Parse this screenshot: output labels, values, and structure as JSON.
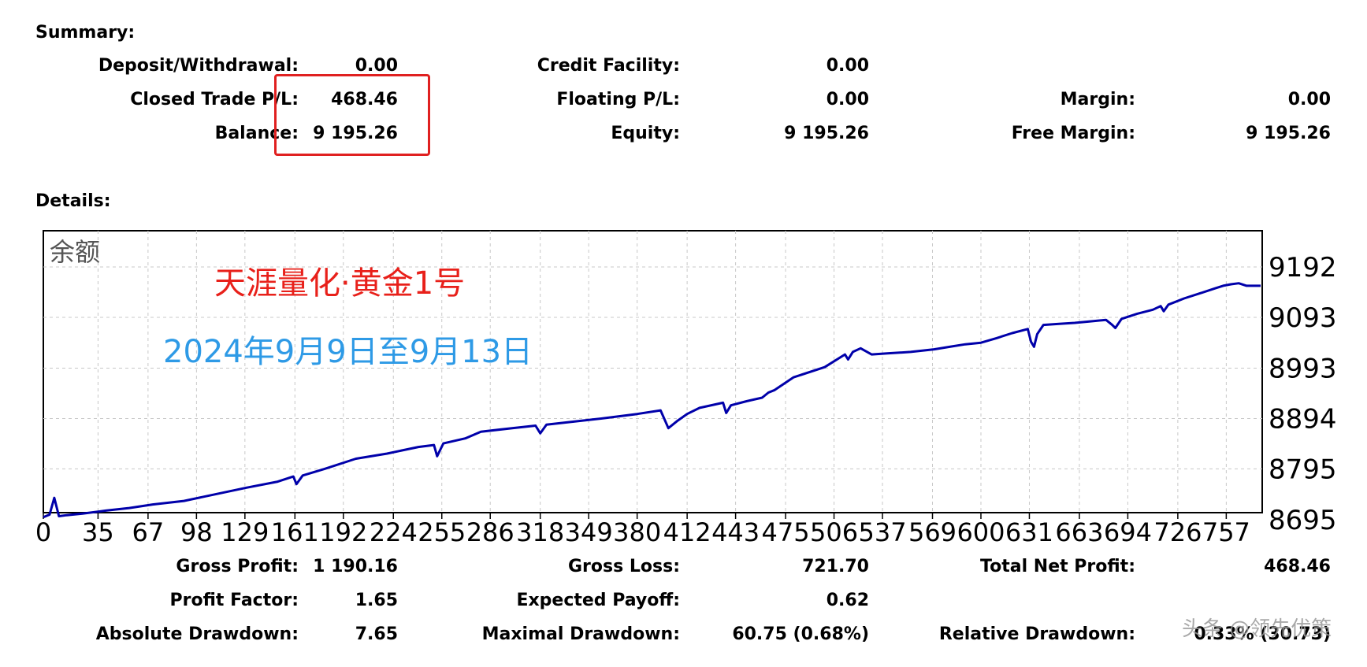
{
  "summary": {
    "title": "Summary:",
    "deposit_label": "Deposit/Withdrawal:",
    "deposit_value": "0.00",
    "credit_label": "Credit Facility:",
    "credit_value": "0.00",
    "closed_pl_label": "Closed Trade P/L:",
    "closed_pl_value": "468.46",
    "floating_pl_label": "Floating P/L:",
    "floating_pl_value": "0.00",
    "margin_label": "Margin:",
    "margin_value": "0.00",
    "balance_label": "Balance:",
    "balance_value": "9 195.26",
    "equity_label": "Equity:",
    "equity_value": "9 195.26",
    "free_margin_label": "Free Margin:",
    "free_margin_value": "9 195.26"
  },
  "details": {
    "title": "Details:",
    "gross_profit_label": "Gross Profit:",
    "gross_profit_value": "1 190.16",
    "gross_loss_label": "Gross Loss:",
    "gross_loss_value": "721.70",
    "total_net_profit_label": "Total Net Profit:",
    "total_net_profit_value": "468.46",
    "profit_factor_label": "Profit Factor:",
    "profit_factor_value": "1.65",
    "expected_payoff_label": "Expected Payoff:",
    "expected_payoff_value": "0.62",
    "absolute_drawdown_label": "Absolute Drawdown:",
    "absolute_drawdown_value": "7.65",
    "maximal_drawdown_label": "Maximal Drawdown:",
    "maximal_drawdown_value": "60.75 (0.68%)",
    "relative_drawdown_label": "Relative Drawdown:",
    "relative_drawdown_value": "0.33% (30.73)"
  },
  "annotations": {
    "strategy_name": "天涯量化·黄金1号",
    "date_range": "2024年9月9日至9月13日",
    "strategy_color": "#e8201a",
    "date_color": "#2e9ae6"
  },
  "watermark": "头条 @领先优策",
  "colors": {
    "line": "#0000aa",
    "grid": "#c8c8c8",
    "highlight": "#e02020"
  },
  "chart_data": {
    "type": "line",
    "label": "余额",
    "y_ticks": [
      "9192",
      "9093",
      "8993",
      "8894",
      "8795",
      "8695"
    ],
    "ylim": [
      8695,
      9192
    ],
    "x_ticks": [
      "0",
      "35",
      "67",
      "98",
      "129",
      "161",
      "192",
      "224",
      "255",
      "286",
      "318",
      "349",
      "380",
      "412",
      "443",
      "475",
      "506",
      "537",
      "569",
      "600",
      "631",
      "663",
      "694",
      "726",
      "757"
    ],
    "xlim": [
      0,
      779
    ],
    "grid": true,
    "series": [
      {
        "x": [
          0,
          4,
          7,
          10,
          15,
          25,
          40,
          55,
          70,
          90,
          110,
          130,
          150,
          160,
          162,
          166,
          180,
          200,
          220,
          240,
          250,
          252,
          256,
          270,
          280,
          300,
          315,
          318,
          322,
          340,
          360,
          380,
          395,
          400,
          406,
          412,
          420,
          435,
          437,
          440,
          450,
          460,
          464,
          468,
          480,
          500,
          513,
          515,
          518,
          523,
          530,
          540,
          555,
          570,
          580,
          590,
          600,
          610,
          620,
          630,
          632,
          634,
          636,
          640,
          650,
          660,
          670,
          680,
          684,
          686,
          690,
          700,
          710,
          715,
          717,
          720,
          730,
          740,
          750,
          755,
          760,
          765,
          770,
          779
        ],
        "y": [
          8700,
          8705,
          8738,
          8702,
          8704,
          8707,
          8713,
          8718,
          8725,
          8732,
          8745,
          8758,
          8770,
          8780,
          8765,
          8782,
          8795,
          8815,
          8825,
          8838,
          8842,
          8820,
          8845,
          8855,
          8868,
          8875,
          8880,
          8865,
          8882,
          8888,
          8895,
          8903,
          8910,
          8875,
          8890,
          8903,
          8915,
          8925,
          8905,
          8920,
          8928,
          8935,
          8945,
          8950,
          8975,
          8995,
          9020,
          9010,
          9025,
          9032,
          9020,
          9022,
          9025,
          9030,
          9035,
          9040,
          9043,
          9052,
          9062,
          9070,
          9045,
          9035,
          9060,
          9078,
          9080,
          9082,
          9085,
          9088,
          9078,
          9072,
          9090,
          9100,
          9108,
          9115,
          9105,
          9118,
          9130,
          9140,
          9150,
          9155,
          9158,
          9160,
          9155,
          9155
        ]
      }
    ]
  }
}
